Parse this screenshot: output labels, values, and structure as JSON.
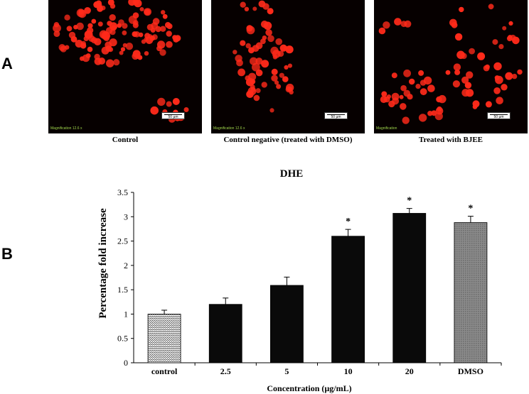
{
  "panels": {
    "a_label": "A",
    "b_label": "B"
  },
  "micrographs": [
    {
      "caption": "Control",
      "magnification": "Magnification   12.6 x",
      "scale_bar": "50 µm"
    },
    {
      "caption": "Control negative (treated with DMSO)",
      "magnification": "Magnification   12.6 x",
      "scale_bar": "50 µm"
    },
    {
      "caption": "Treated with BJEE",
      "magnification": "Magnification",
      "scale_bar": "50 µm"
    }
  ],
  "colors": {
    "cell_fill": "#ff2a1a",
    "background": "#060000",
    "bar_dark": "#0a0a0a",
    "bar_control_pattern": "#c8c8c8",
    "bar_dmso": "#7d7d7d"
  },
  "chart_data": {
    "type": "bar",
    "title": "DHE",
    "xlabel": "Concentration (µg/mL)",
    "ylabel": "Percentage fold increase",
    "ylim": [
      0,
      3.5
    ],
    "yticks": [
      "0",
      "0.5",
      "1",
      "1.5",
      "2",
      "2.5",
      "3",
      "3.5"
    ],
    "categories": [
      "control",
      "2.5",
      "5",
      "10",
      "20",
      "DMSO"
    ],
    "values": [
      1.0,
      1.2,
      1.59,
      2.6,
      3.07,
      2.88
    ],
    "errors": [
      0.08,
      0.13,
      0.17,
      0.14,
      0.1,
      0.13
    ],
    "significance": [
      "",
      "",
      "",
      "*",
      "*",
      "*"
    ],
    "bar_styles": [
      "zigzag",
      "solid",
      "solid",
      "solid",
      "solid",
      "grid"
    ],
    "grid": false,
    "legend": "none"
  }
}
